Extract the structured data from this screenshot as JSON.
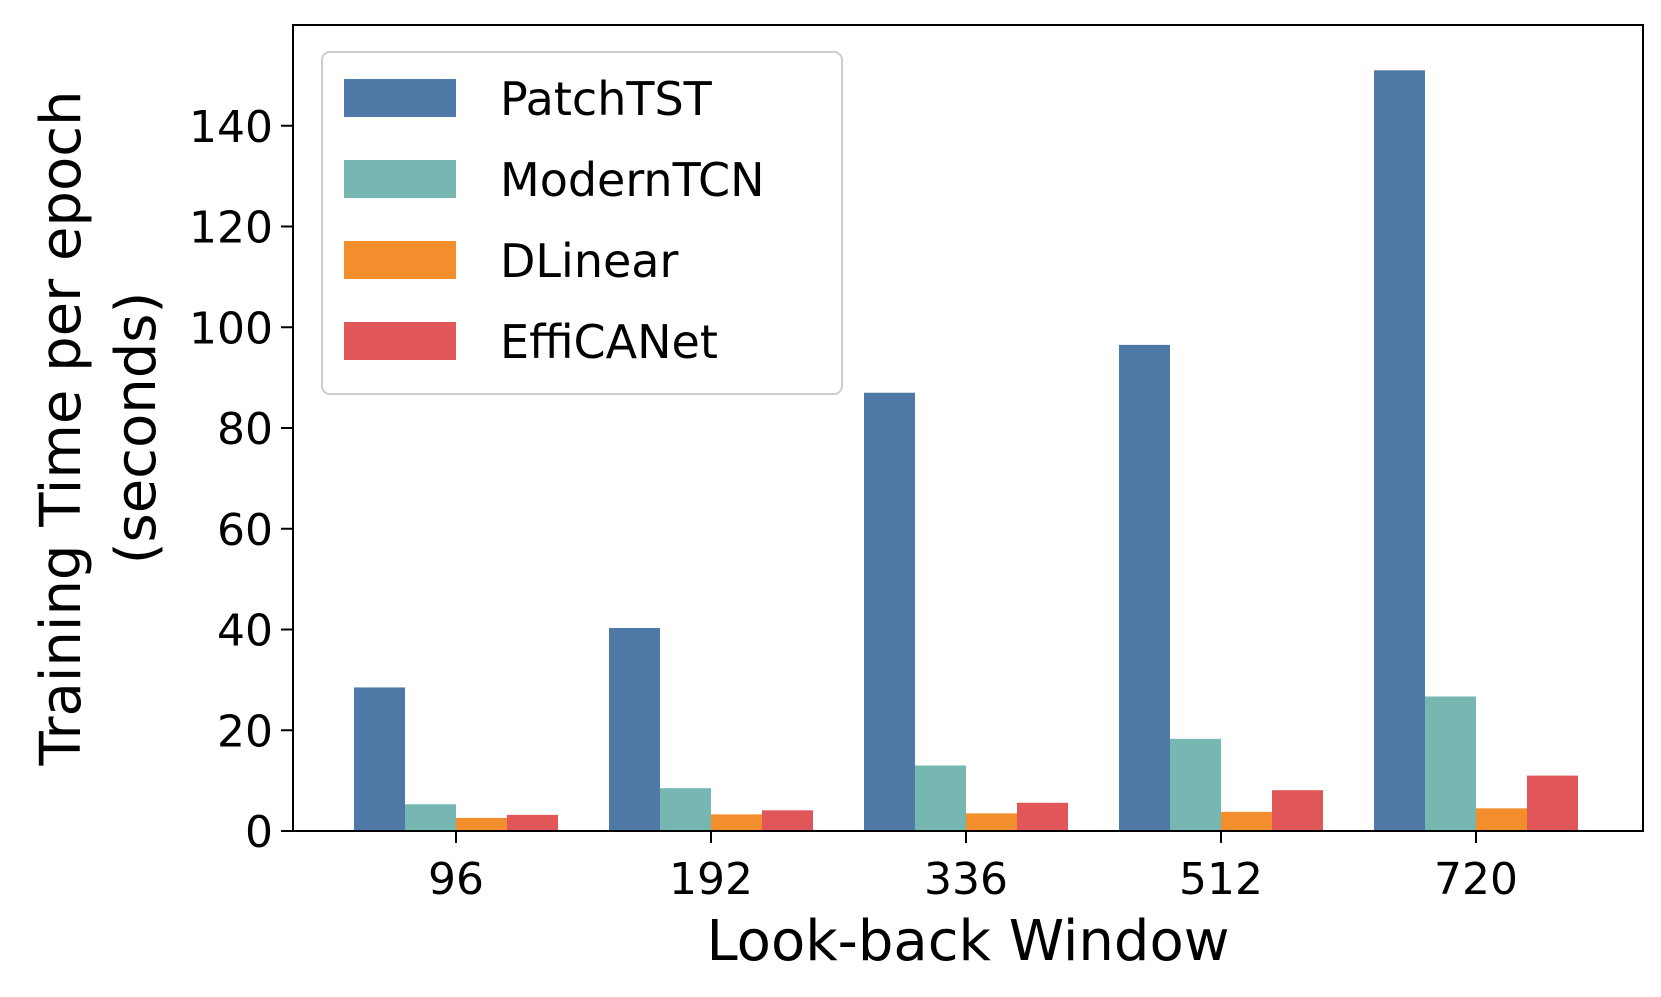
{
  "chart_data": {
    "type": "bar",
    "title": "",
    "xlabel": "Look-back Window",
    "ylabel_line1": "Training Time per epoch",
    "ylabel_line2": "(seconds)",
    "categories": [
      "96",
      "192",
      "336",
      "512",
      "720"
    ],
    "ylim": [
      0,
      160
    ],
    "yticks": [
      0,
      20,
      40,
      60,
      80,
      100,
      120,
      140
    ],
    "grid": false,
    "legend_position": "top-left",
    "series": [
      {
        "name": "PatchTST",
        "color": "#4e79a7",
        "values": [
          28.5,
          40.3,
          87.0,
          96.5,
          151.0
        ]
      },
      {
        "name": "ModernTCN",
        "color": "#76b7b2",
        "values": [
          5.3,
          8.5,
          13.0,
          18.3,
          26.7
        ]
      },
      {
        "name": "DLinear",
        "color": "#f28e2b",
        "values": [
          2.6,
          3.3,
          3.5,
          3.8,
          4.5
        ]
      },
      {
        "name": "EffiCANet",
        "color": "#e15759",
        "values": [
          3.2,
          4.1,
          5.6,
          8.1,
          11.0
        ]
      }
    ]
  }
}
